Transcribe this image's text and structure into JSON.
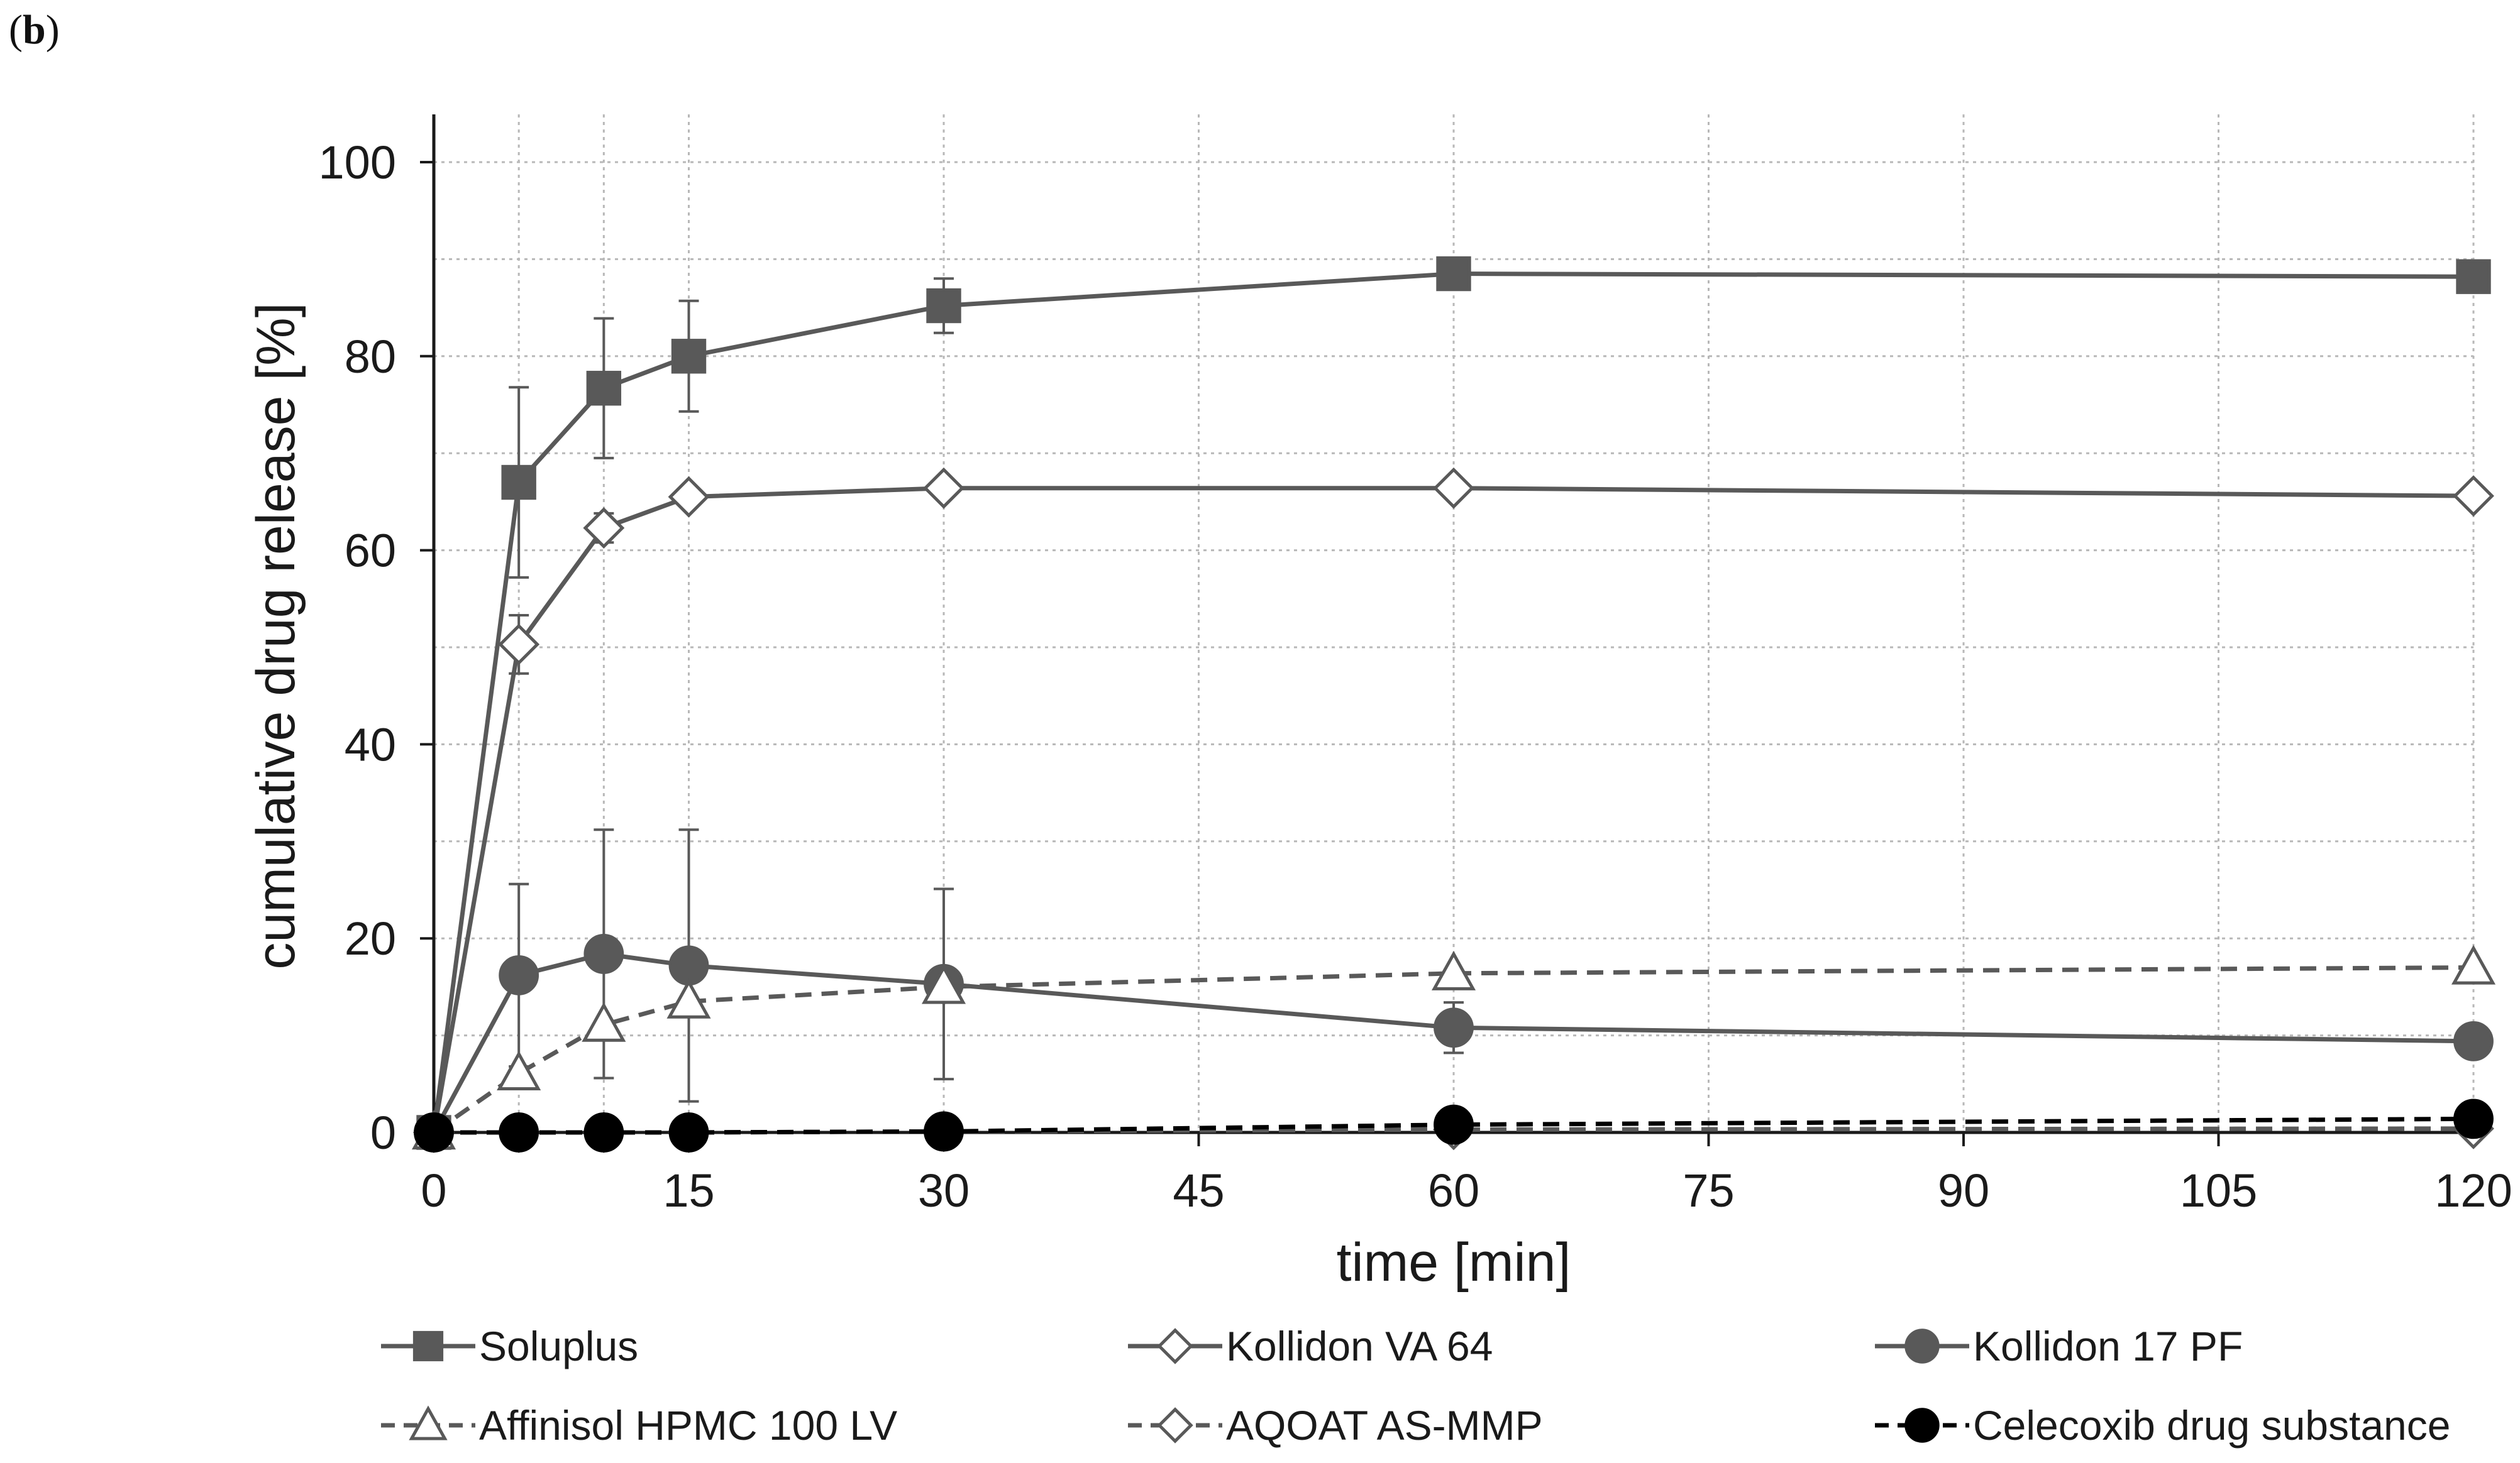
{
  "panel": {
    "open": "(",
    "letter": "b",
    "close": ")"
  },
  "chart_data": {
    "type": "line",
    "xlabel": "time [min]",
    "ylabel": "cumulative drug release [%]",
    "xlim": [
      0,
      120
    ],
    "ylim": [
      0,
      100
    ],
    "xticks": [
      0,
      15,
      30,
      45,
      60,
      75,
      90,
      105,
      120
    ],
    "yticks": [
      0,
      20,
      40,
      60,
      80,
      100
    ],
    "x_gridlines": [
      0,
      5,
      10,
      15,
      30,
      45,
      60,
      75,
      90,
      105,
      120
    ],
    "grid": true,
    "legend_position": "bottom",
    "series": [
      {
        "name": "Soluplus",
        "style": "solid",
        "marker": "square",
        "filled": true,
        "color": "#595959",
        "x": [
          0,
          5,
          10,
          15,
          30,
          60,
          120
        ],
        "y": [
          0,
          67,
          76.7,
          80,
          85.2,
          88.5,
          88.2
        ],
        "err": [
          0,
          9.8,
          7.2,
          5.7,
          2.8,
          0,
          0
        ]
      },
      {
        "name": "Kollidon VA 64",
        "style": "solid",
        "marker": "diamond",
        "filled": false,
        "color": "#595959",
        "x": [
          0,
          5,
          10,
          15,
          30,
          60,
          120
        ],
        "y": [
          0,
          50.3,
          62.3,
          65.5,
          66.4,
          66.4,
          65.6
        ],
        "err": [
          0,
          3.0,
          1.5,
          0,
          0,
          0,
          0
        ]
      },
      {
        "name": "Kollidon 17 PF",
        "style": "solid",
        "marker": "circle",
        "filled": true,
        "color": "#595959",
        "x": [
          0,
          5,
          10,
          15,
          30,
          60,
          120
        ],
        "y": [
          0,
          16.2,
          18.4,
          17.2,
          15.3,
          10.8,
          9.4
        ],
        "err": [
          0,
          9.4,
          12.8,
          14.0,
          9.8,
          2.6,
          1.5
        ]
      },
      {
        "name": "Affinisol HPMC 100 LV",
        "style": "dashed",
        "marker": "triangle",
        "filled": false,
        "color": "#595959",
        "x": [
          0,
          5,
          10,
          15,
          30,
          60,
          120
        ],
        "y": [
          0,
          6.1,
          11.1,
          13.5,
          15.0,
          16.4,
          17.0
        ],
        "err": [
          0,
          0,
          0,
          0,
          0,
          0,
          0
        ]
      },
      {
        "name": "AQOAT AS-MMP",
        "style": "dashed",
        "marker": "diamond",
        "filled": false,
        "color": "#595959",
        "x": [
          0,
          5,
          10,
          15,
          30,
          60,
          120
        ],
        "y": [
          0,
          0,
          0,
          0,
          0.1,
          0.3,
          0.4
        ],
        "err": [
          0,
          0,
          0,
          0,
          0,
          0,
          0
        ]
      },
      {
        "name": "Celecoxib drug substance",
        "style": "dashed",
        "marker": "circle",
        "filled": true,
        "color": "#000000",
        "x": [
          0,
          5,
          10,
          15,
          30,
          60,
          120
        ],
        "y": [
          0,
          0,
          0,
          0,
          0.1,
          0.8,
          1.4
        ],
        "err": [
          0,
          0,
          0,
          0,
          0,
          0,
          0
        ]
      }
    ]
  }
}
